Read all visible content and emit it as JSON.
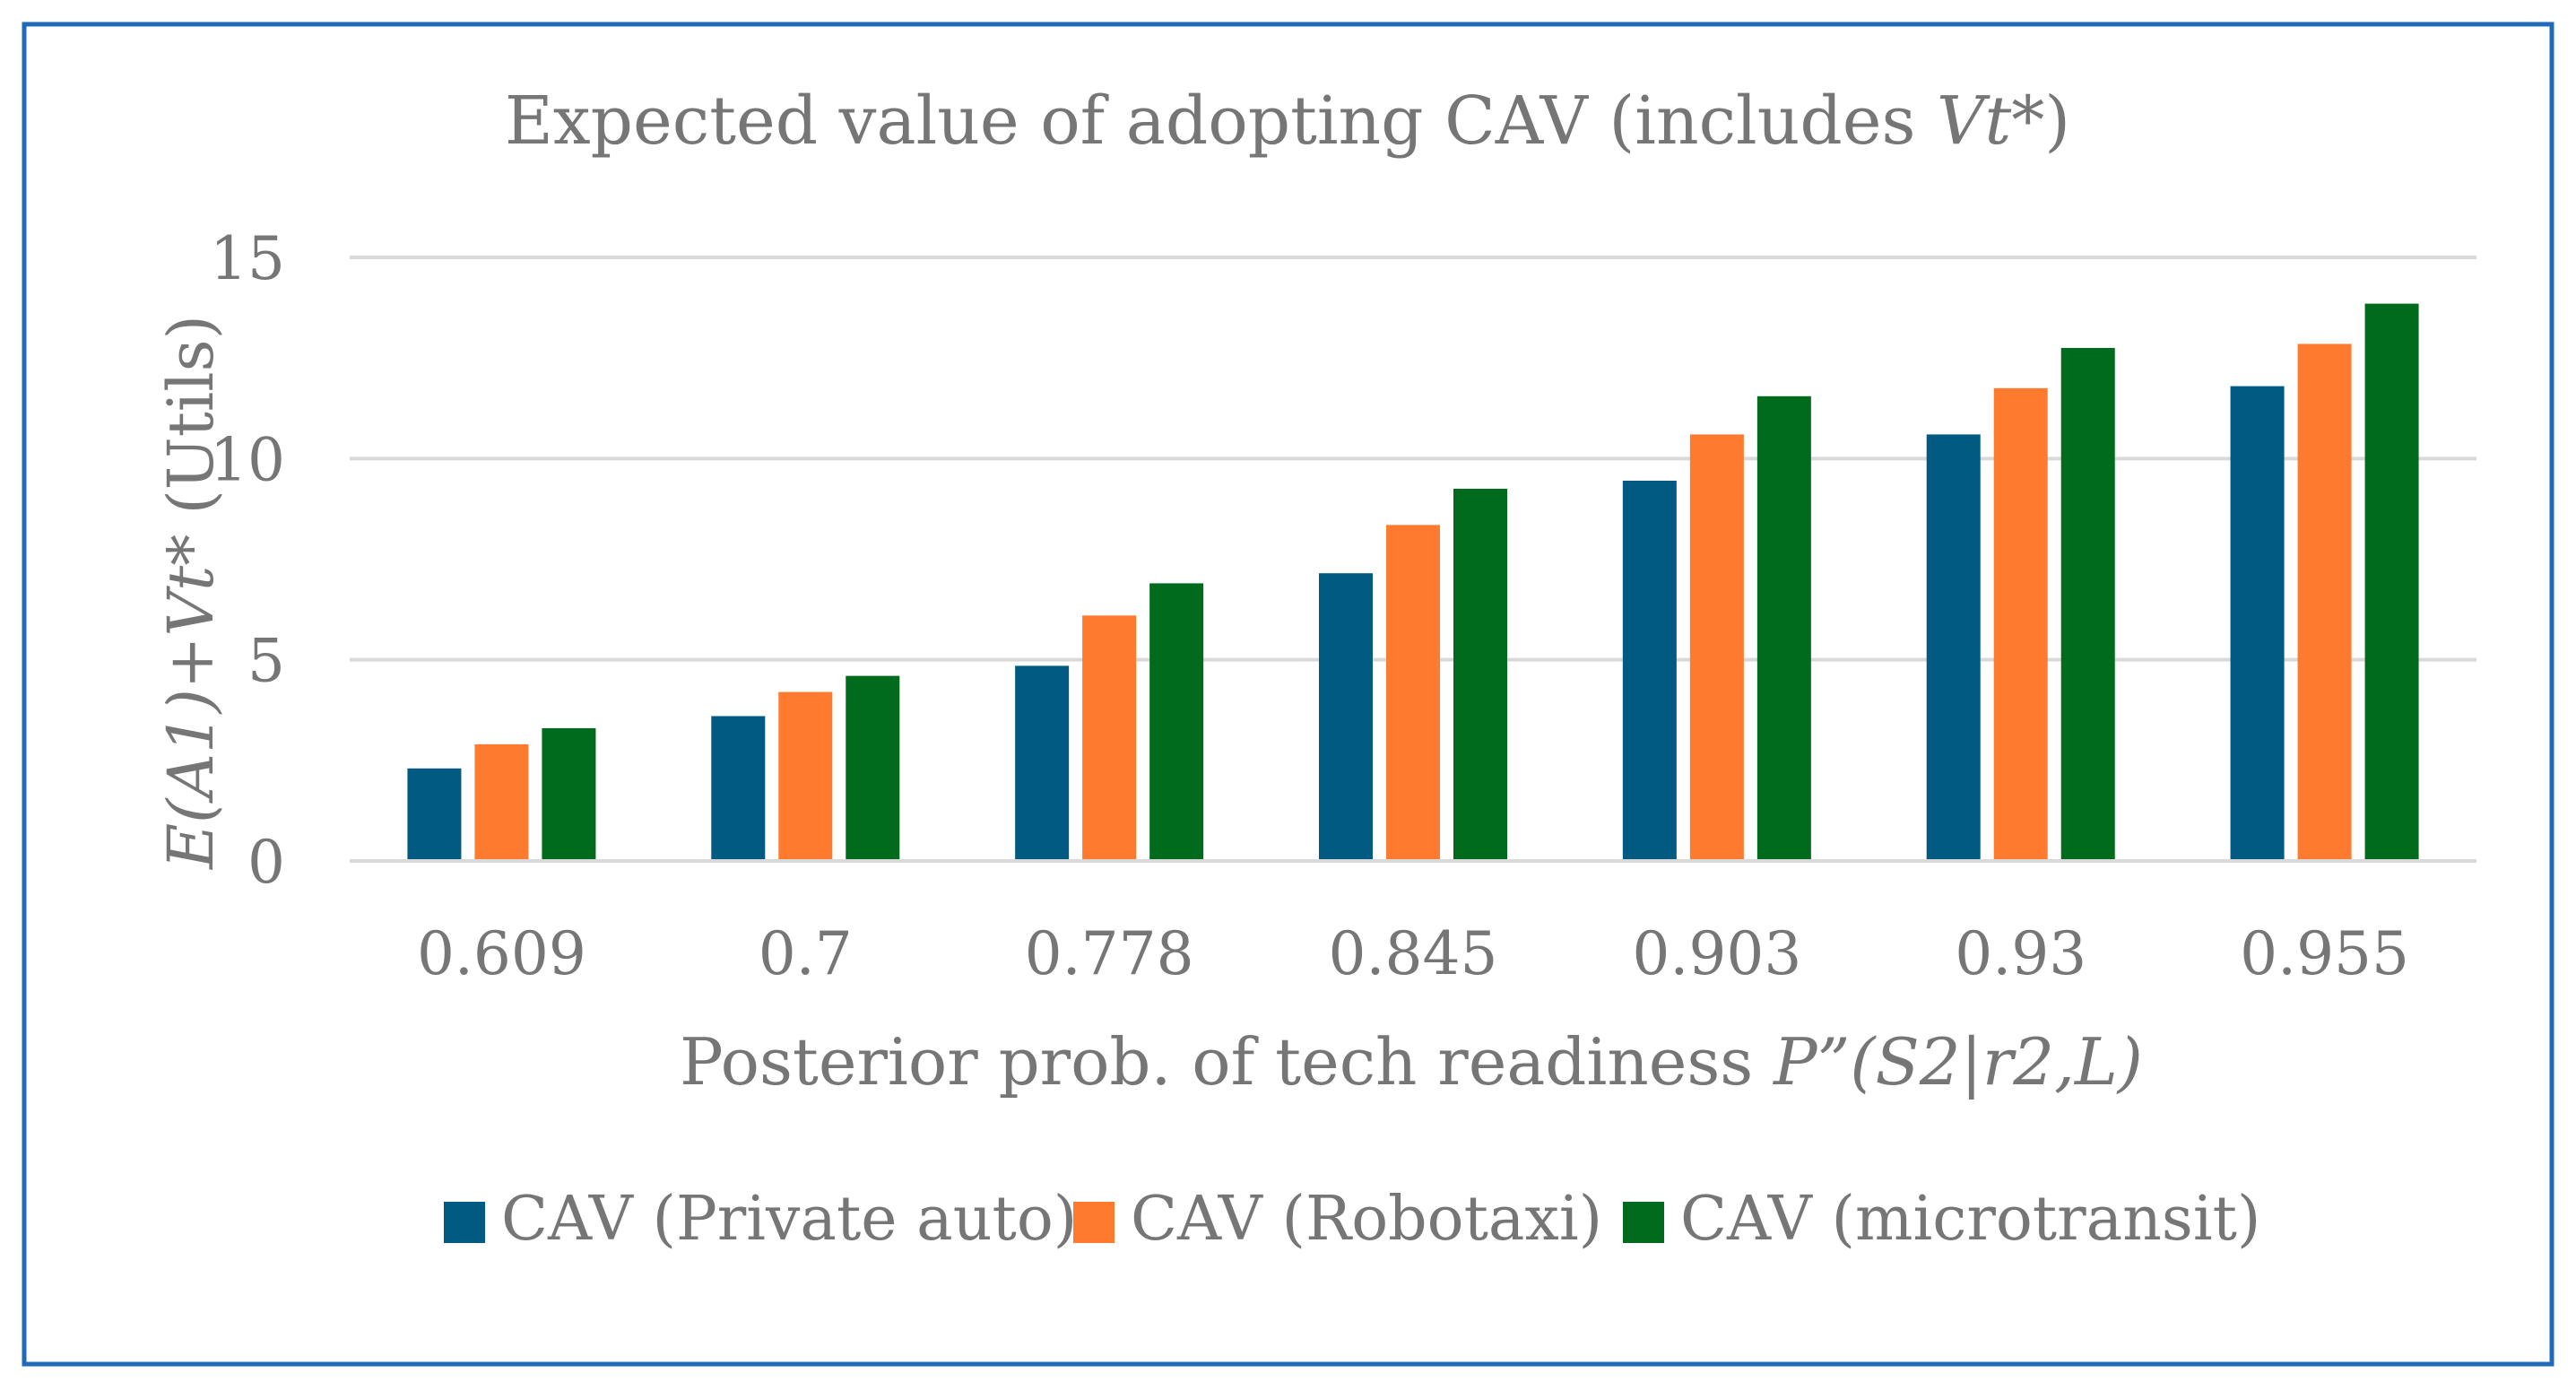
{
  "chart_data": {
    "type": "bar",
    "title_main": "Expected value of adopting CAV (includes ",
    "title_italic": "Vt*",
    "title_end": ")",
    "ylabel_italic": "E(A1)+Vt*",
    "ylabel_normal": " (Utils)",
    "xlabel_main": "Posterior prob. of tech readiness ",
    "xlabel_italic": "P”(S2|r2,L)",
    "categories": [
      "0.609",
      "0.7",
      "0.778",
      "0.845",
      "0.903",
      "0.93",
      "0.955"
    ],
    "series": [
      {
        "name": "CAV (Private auto)",
        "color": "#005a82",
        "values": [
          2.3,
          3.6,
          4.85,
          7.15,
          9.45,
          10.6,
          11.8
        ]
      },
      {
        "name": "CAV (Robotaxi)",
        "color": "#fd7a2f",
        "values": [
          2.9,
          4.2,
          6.1,
          8.35,
          10.6,
          11.75,
          12.85
        ]
      },
      {
        "name": "CAV (microtransit)",
        "color": "#006b1c",
        "values": [
          3.3,
          4.6,
          6.9,
          9.25,
          11.55,
          12.75,
          13.85
        ]
      }
    ],
    "yticks": [
      "0",
      "5",
      "10",
      "15"
    ],
    "ylim": [
      0,
      15
    ],
    "grid": true,
    "legend_position": "bottom",
    "frame_color": "#1f6bb8"
  }
}
